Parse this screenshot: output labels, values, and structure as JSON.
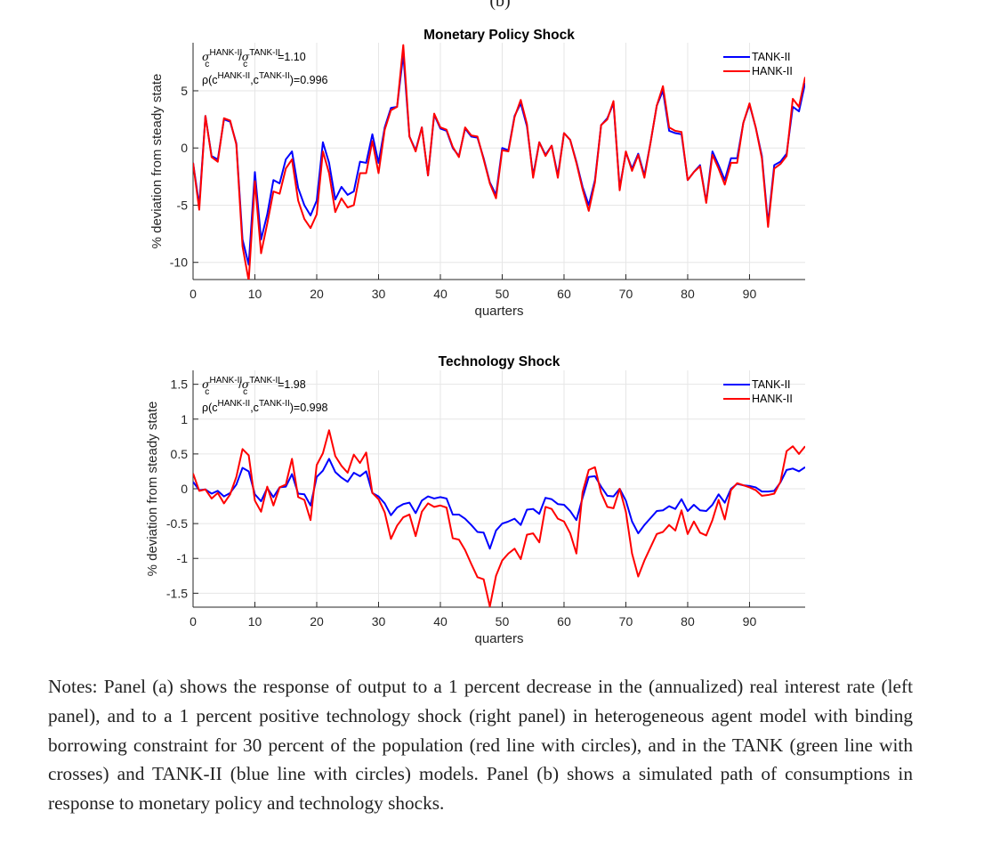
{
  "panel_label": "(b)",
  "chart_data": [
    {
      "type": "line",
      "title": "Monetary Policy Shock",
      "xlabel": "quarters",
      "ylabel": "% deviation from steady state",
      "xlim": [
        0,
        99
      ],
      "ylim": [
        -11.5,
        9.2
      ],
      "xticks": [
        0,
        10,
        20,
        30,
        40,
        50,
        60,
        70,
        80,
        90
      ],
      "yticks": [
        -10,
        -5,
        0,
        5
      ],
      "ytick_labels": [
        "-10",
        "-5",
        "0",
        "5"
      ],
      "grid": true,
      "legend_position": "top-right",
      "annotations": {
        "ratio_prefix": "σ",
        "ratio_sub": "c",
        "ratio_sup1": "HANK-II",
        "ratio_sup2": "TANK-II",
        "ratio_value": "=1.10",
        "corr_prefix": "ρ(c",
        "corr_sup1": "HANK-II",
        "corr_mid": ",c",
        "corr_sup2": "TANK-II",
        "corr_value": ")=0.996"
      },
      "series": [
        {
          "name": "TANK-II",
          "color": "#0000ff",
          "values": [
            -1.3,
            -5.0,
            2.8,
            -0.7,
            -1.0,
            2.5,
            2.3,
            0.4,
            -8.0,
            -10.2,
            -2.1,
            -8.0,
            -5.8,
            -2.8,
            -3.1,
            -1.0,
            -0.3,
            -3.5,
            -5.0,
            -5.9,
            -4.6,
            0.5,
            -1.3,
            -4.5,
            -3.4,
            -4.1,
            -3.8,
            -1.2,
            -1.3,
            1.2,
            -1.3,
            1.8,
            3.5,
            3.6,
            8.2,
            1.0,
            -0.2,
            1.8,
            -2.4,
            2.9,
            1.7,
            1.5,
            0.0,
            -0.7,
            1.7,
            1.0,
            0.9,
            -0.9,
            -3.0,
            -4.1,
            0.0,
            -0.2,
            2.8,
            3.9,
            1.9,
            -2.4,
            0.5,
            -0.6,
            0.2,
            -2.4,
            1.3,
            0.7,
            -1.2,
            -3.4,
            -5.0,
            -2.8,
            2.0,
            2.6,
            3.9,
            -3.5,
            -0.4,
            -1.8,
            -0.5,
            -2.4,
            0.5,
            3.7,
            5.0,
            1.5,
            1.3,
            1.2,
            -2.8,
            -2.1,
            -1.5,
            -4.7,
            -0.3,
            -1.5,
            -2.8,
            -0.9,
            -0.9,
            2.2,
            3.8,
            1.8,
            -0.7,
            -6.6,
            -1.5,
            -1.2,
            -0.5,
            3.6,
            3.2,
            5.7
          ]
        },
        {
          "name": "HANK-II",
          "color": "#ff0000",
          "values": [
            -1.3,
            -5.4,
            2.8,
            -0.8,
            -1.2,
            2.6,
            2.4,
            0.3,
            -8.6,
            -11.6,
            -2.9,
            -9.2,
            -6.6,
            -3.8,
            -4.0,
            -1.8,
            -1.0,
            -4.6,
            -6.2,
            -7.0,
            -5.8,
            -0.3,
            -2.2,
            -5.6,
            -4.4,
            -5.2,
            -5.0,
            -2.2,
            -2.2,
            0.6,
            -2.2,
            1.6,
            3.3,
            3.6,
            9.0,
            1.0,
            -0.3,
            1.8,
            -2.4,
            3.0,
            1.8,
            1.6,
            0.1,
            -0.8,
            1.8,
            1.1,
            1.0,
            -1.0,
            -3.1,
            -4.4,
            -0.2,
            -0.3,
            2.7,
            4.2,
            2.1,
            -2.6,
            0.5,
            -0.7,
            0.2,
            -2.6,
            1.3,
            0.7,
            -1.3,
            -3.6,
            -5.5,
            -3.0,
            2.0,
            2.5,
            4.1,
            -3.7,
            -0.3,
            -2.0,
            -0.6,
            -2.6,
            0.5,
            3.7,
            5.4,
            1.8,
            1.5,
            1.4,
            -2.8,
            -2.1,
            -1.6,
            -4.8,
            -0.6,
            -1.8,
            -3.2,
            -1.3,
            -1.3,
            2.2,
            3.9,
            1.8,
            -0.9,
            -6.9,
            -1.8,
            -1.4,
            -0.7,
            4.3,
            3.6,
            6.2
          ]
        }
      ]
    },
    {
      "type": "line",
      "title": "Technology Shock",
      "xlabel": "quarters",
      "ylabel": "% deviation from steady state",
      "xlim": [
        0,
        99
      ],
      "ylim": [
        -1.7,
        1.7
      ],
      "xticks": [
        0,
        10,
        20,
        30,
        40,
        50,
        60,
        70,
        80,
        90
      ],
      "yticks": [
        -1.5,
        -1,
        -0.5,
        0,
        0.5,
        1,
        1.5
      ],
      "ytick_labels": [
        "-1.5",
        "-1",
        "-0.5",
        "0",
        "0.5",
        "1",
        "1.5"
      ],
      "grid": true,
      "legend_position": "top-right",
      "annotations": {
        "ratio_prefix": "σ",
        "ratio_sub": "c",
        "ratio_sup1": "HANK-II",
        "ratio_sup2": "TANK-II",
        "ratio_value": "=1.98",
        "corr_prefix": "ρ(c",
        "corr_sup1": "HANK-II",
        "corr_mid": ",c",
        "corr_sup2": "TANK-II",
        "corr_value": ")=0.998"
      },
      "series": [
        {
          "name": "TANK-II",
          "color": "#0000ff",
          "values": [
            0.1,
            -0.02,
            -0.01,
            -0.07,
            -0.03,
            -0.11,
            -0.06,
            0.06,
            0.3,
            0.25,
            -0.08,
            -0.18,
            0.01,
            -0.12,
            0.02,
            0.03,
            0.21,
            -0.07,
            -0.08,
            -0.24,
            0.17,
            0.26,
            0.43,
            0.24,
            0.16,
            0.1,
            0.23,
            0.18,
            0.25,
            -0.06,
            -0.11,
            -0.21,
            -0.38,
            -0.27,
            -0.22,
            -0.2,
            -0.35,
            -0.17,
            -0.11,
            -0.14,
            -0.12,
            -0.14,
            -0.37,
            -0.37,
            -0.43,
            -0.52,
            -0.62,
            -0.63,
            -0.86,
            -0.6,
            -0.5,
            -0.47,
            -0.43,
            -0.52,
            -0.3,
            -0.29,
            -0.36,
            -0.13,
            -0.15,
            -0.22,
            -0.23,
            -0.32,
            -0.45,
            -0.13,
            0.17,
            0.18,
            0.03,
            -0.1,
            -0.11,
            0.0,
            -0.17,
            -0.47,
            -0.64,
            -0.52,
            -0.42,
            -0.32,
            -0.31,
            -0.25,
            -0.29,
            -0.15,
            -0.32,
            -0.23,
            -0.31,
            -0.32,
            -0.23,
            -0.08,
            -0.2,
            0.0,
            0.07,
            0.05,
            0.04,
            0.02,
            -0.04,
            -0.04,
            -0.03,
            0.09,
            0.27,
            0.29,
            0.25,
            0.31
          ]
        },
        {
          "name": "HANK-II",
          "color": "#ff0000",
          "values": [
            0.22,
            -0.03,
            -0.01,
            -0.14,
            -0.06,
            -0.21,
            -0.08,
            0.17,
            0.57,
            0.48,
            -0.17,
            -0.33,
            0.03,
            -0.24,
            0.02,
            0.06,
            0.43,
            -0.12,
            -0.16,
            -0.45,
            0.34,
            0.51,
            0.84,
            0.47,
            0.33,
            0.23,
            0.49,
            0.37,
            0.52,
            -0.06,
            -0.15,
            -0.34,
            -0.72,
            -0.53,
            -0.41,
            -0.37,
            -0.68,
            -0.33,
            -0.21,
            -0.26,
            -0.24,
            -0.27,
            -0.71,
            -0.73,
            -0.88,
            -1.08,
            -1.27,
            -1.3,
            -1.69,
            -1.25,
            -1.03,
            -0.93,
            -0.86,
            -1.01,
            -0.66,
            -0.64,
            -0.77,
            -0.26,
            -0.29,
            -0.43,
            -0.47,
            -0.64,
            -0.93,
            -0.05,
            0.27,
            0.31,
            -0.06,
            -0.26,
            -0.28,
            0.0,
            -0.33,
            -0.93,
            -1.26,
            -1.03,
            -0.84,
            -0.65,
            -0.62,
            -0.52,
            -0.6,
            -0.31,
            -0.65,
            -0.47,
            -0.63,
            -0.67,
            -0.45,
            -0.16,
            -0.44,
            -0.02,
            0.08,
            0.05,
            0.02,
            -0.02,
            -0.1,
            -0.09,
            -0.07,
            0.1,
            0.54,
            0.61,
            0.5,
            0.61
          ]
        }
      ]
    }
  ],
  "notes": "Notes: Panel (a) shows the response of output to a 1 percent decrease in the (annualized) real interest rate (left panel), and to a 1 percent positive technology shock (right panel) in heterogeneous agent model with binding borrowing constraint for 30 percent of the population (red line with circles), and in the TANK (green line with crosses) and TANK-II (blue line with circles) models. Panel (b) shows a simulated path of consumptions in response to monetary policy and technology shocks."
}
